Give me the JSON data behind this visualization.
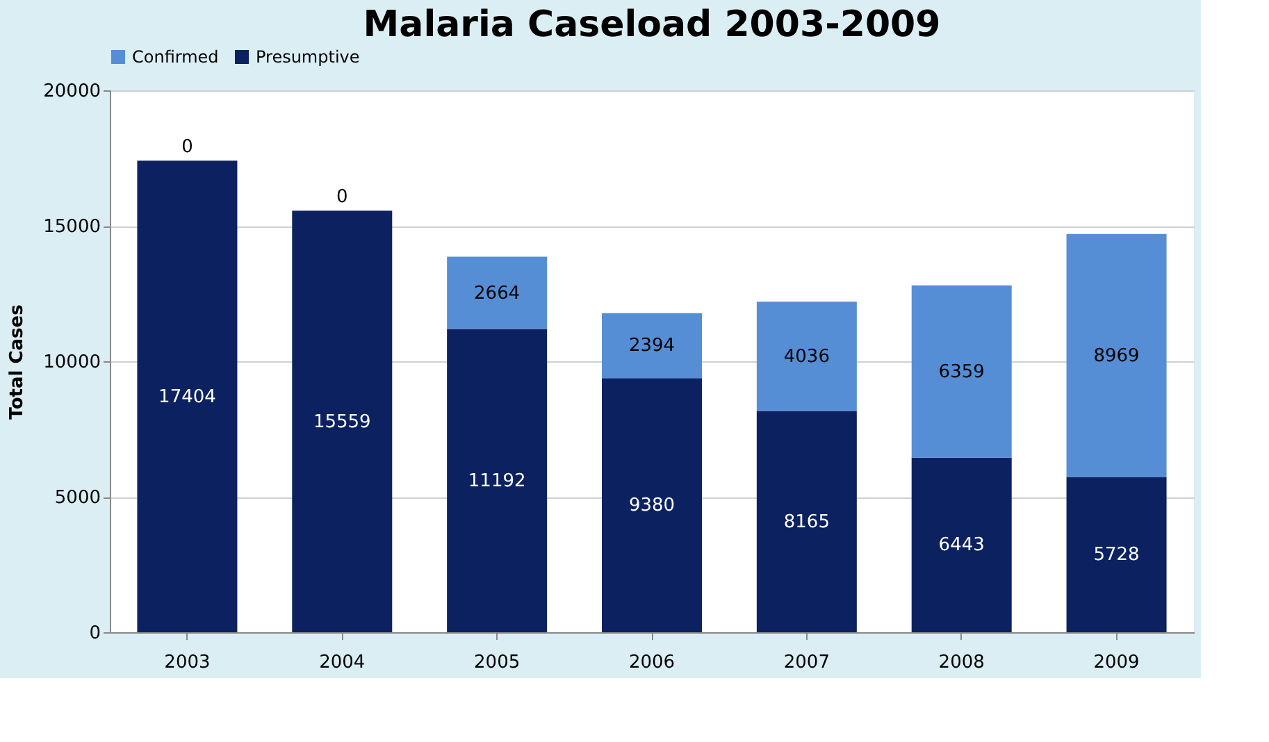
{
  "chart_data": {
    "type": "bar",
    "title": "Malaria Caseload 2003-2009",
    "ylabel": "Total Cases",
    "categories": [
      "2003",
      "2004",
      "2005",
      "2006",
      "2007",
      "2008",
      "2009"
    ],
    "series": [
      {
        "name": "Presumptive",
        "color": "#0c2160",
        "values": [
          17404,
          15559,
          11192,
          9380,
          8165,
          6443,
          5728
        ]
      },
      {
        "name": "Confirmed",
        "color": "#558ed5",
        "values": [
          0,
          0,
          2664,
          2394,
          4036,
          6359,
          8969
        ]
      }
    ],
    "stacked": true,
    "ylim": [
      0,
      20000
    ],
    "yticks": [
      0,
      5000,
      10000,
      15000,
      20000
    ],
    "grid": "y",
    "legend": "top",
    "data_labels": true
  }
}
